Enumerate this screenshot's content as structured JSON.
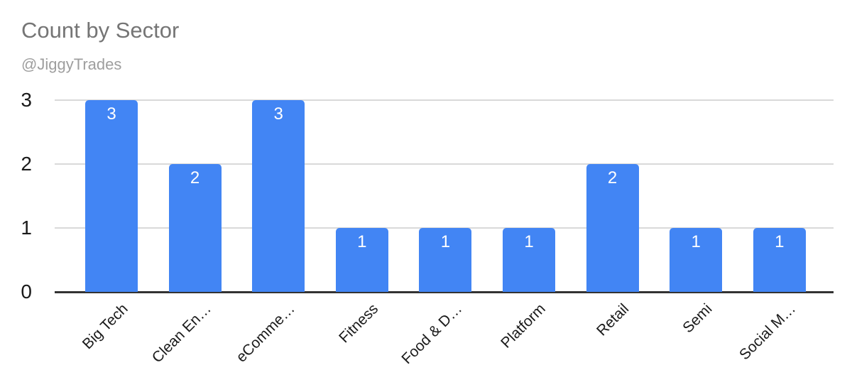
{
  "colors": {
    "background": "#ffffff",
    "bar": "#4285f4",
    "title": "#757575",
    "subtitle": "#9e9e9e",
    "axis_text": "#1a1a1a",
    "gridline": "#d9d9d9",
    "baseline": "#333333",
    "data_label": "#ffffff"
  },
  "chart_data": {
    "type": "bar",
    "title": "Count by Sector",
    "subtitle": "@JiggyTrades",
    "categories": [
      "Big Tech",
      "Clean En…",
      "eComme…",
      "Fitness",
      "Food & D…",
      "Platform",
      "Retail",
      "Semi",
      "Social M…"
    ],
    "values": [
      3,
      2,
      3,
      1,
      1,
      1,
      2,
      1,
      1
    ],
    "data_labels": [
      "3",
      "2",
      "3",
      "1",
      "1",
      "1",
      "2",
      "1",
      "1"
    ],
    "yticks": [
      0,
      1,
      2,
      3
    ],
    "ylim": [
      0,
      3
    ],
    "xlabel": "",
    "ylabel": "",
    "grid": true,
    "legend": "none",
    "x_label_rotation_deg": -45,
    "bar_color": "#4285f4"
  }
}
